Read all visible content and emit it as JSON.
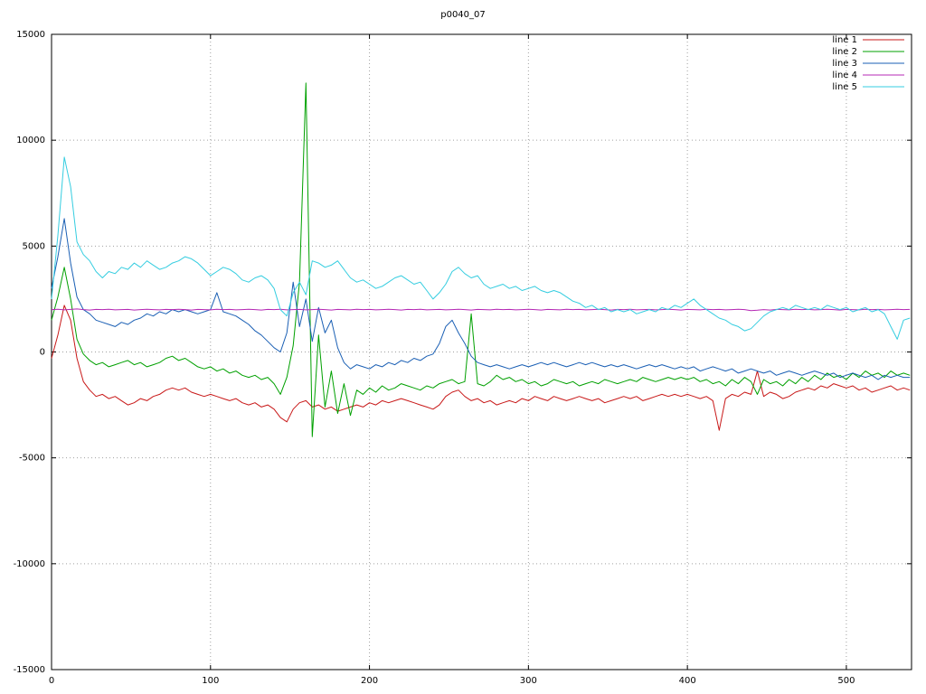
{
  "chart_data": {
    "type": "line",
    "title": "p0040_07",
    "xlabel": "",
    "ylabel": "",
    "xlim": [
      0,
      541
    ],
    "ylim": [
      -15000,
      15000
    ],
    "x_ticks": [
      0,
      100,
      200,
      300,
      400,
      500
    ],
    "y_ticks": [
      -15000,
      -10000,
      -5000,
      0,
      5000,
      10000,
      15000
    ],
    "grid": "dotted",
    "legend_position": "top-right",
    "x_start": 0,
    "x_step": 4,
    "series": [
      {
        "name": "line 1",
        "color": "#c81818",
        "values": [
          -300,
          800,
          2200,
          1500,
          -300,
          -1400,
          -1800,
          -2100,
          -2000,
          -2200,
          -2100,
          -2300,
          -2500,
          -2400,
          -2200,
          -2300,
          -2100,
          -2000,
          -1800,
          -1700,
          -1800,
          -1700,
          -1900,
          -2000,
          -2100,
          -2000,
          -2100,
          -2200,
          -2300,
          -2200,
          -2400,
          -2500,
          -2400,
          -2600,
          -2500,
          -2700,
          -3100,
          -3300,
          -2700,
          -2400,
          -2300,
          -2600,
          -2500,
          -2700,
          -2600,
          -2800,
          -2700,
          -2600,
          -2500,
          -2600,
          -2400,
          -2500,
          -2300,
          -2400,
          -2300,
          -2200,
          -2300,
          -2400,
          -2500,
          -2600,
          -2700,
          -2500,
          -2100,
          -1900,
          -1800,
          -2100,
          -2300,
          -2200,
          -2400,
          -2300,
          -2500,
          -2400,
          -2300,
          -2400,
          -2200,
          -2300,
          -2100,
          -2200,
          -2300,
          -2100,
          -2200,
          -2300,
          -2200,
          -2100,
          -2200,
          -2300,
          -2200,
          -2400,
          -2300,
          -2200,
          -2100,
          -2200,
          -2100,
          -2300,
          -2200,
          -2100,
          -2000,
          -2100,
          -2000,
          -2100,
          -2000,
          -2100,
          -2200,
          -2100,
          -2300,
          -3700,
          -2200,
          -2000,
          -2100,
          -1900,
          -2000,
          -900,
          -2100,
          -1900,
          -2000,
          -2200,
          -2100,
          -1900,
          -1800,
          -1700,
          -1800,
          -1600,
          -1700,
          -1500,
          -1600,
          -1700,
          -1600,
          -1800,
          -1700,
          -1900,
          -1800,
          -1700,
          -1600,
          -1800,
          -1700,
          -1800
        ]
      },
      {
        "name": "line 2",
        "color": "#00a000",
        "values": [
          1500,
          2600,
          4000,
          2500,
          600,
          -100,
          -400,
          -600,
          -500,
          -700,
          -600,
          -500,
          -400,
          -600,
          -500,
          -700,
          -600,
          -500,
          -300,
          -200,
          -400,
          -300,
          -500,
          -700,
          -800,
          -700,
          -900,
          -800,
          -1000,
          -900,
          -1100,
          -1200,
          -1100,
          -1300,
          -1200,
          -1500,
          -2000,
          -1200,
          300,
          3300,
          12700,
          -4000,
          800,
          -2600,
          -900,
          -2900,
          -1500,
          -3000,
          -1800,
          -2000,
          -1700,
          -1900,
          -1600,
          -1800,
          -1700,
          -1500,
          -1600,
          -1700,
          -1800,
          -1600,
          -1700,
          -1500,
          -1400,
          -1300,
          -1500,
          -1400,
          1800,
          -1500,
          -1600,
          -1400,
          -1100,
          -1300,
          -1200,
          -1400,
          -1300,
          -1500,
          -1400,
          -1600,
          -1500,
          -1300,
          -1400,
          -1500,
          -1400,
          -1600,
          -1500,
          -1400,
          -1500,
          -1300,
          -1400,
          -1500,
          -1400,
          -1300,
          -1400,
          -1200,
          -1300,
          -1400,
          -1300,
          -1200,
          -1300,
          -1200,
          -1300,
          -1200,
          -1400,
          -1300,
          -1500,
          -1400,
          -1600,
          -1300,
          -1500,
          -1200,
          -1400,
          -2000,
          -1300,
          -1500,
          -1400,
          -1600,
          -1300,
          -1500,
          -1200,
          -1400,
          -1100,
          -1300,
          -1000,
          -1200,
          -1100,
          -1300,
          -1000,
          -1200,
          -900,
          -1100,
          -1000,
          -1200,
          -900,
          -1100,
          -1000,
          -1100
        ]
      },
      {
        "name": "line 3",
        "color": "#1a5fb4",
        "values": [
          3000,
          4500,
          6300,
          4200,
          2600,
          2000,
          1800,
          1500,
          1400,
          1300,
          1200,
          1400,
          1300,
          1500,
          1600,
          1800,
          1700,
          1900,
          1800,
          2000,
          1900,
          2000,
          1900,
          1800,
          1900,
          2000,
          2800,
          1900,
          1800,
          1700,
          1500,
          1300,
          1000,
          800,
          500,
          200,
          0,
          900,
          3300,
          1200,
          2500,
          500,
          2100,
          900,
          1500,
          200,
          -500,
          -800,
          -600,
          -700,
          -800,
          -600,
          -700,
          -500,
          -600,
          -400,
          -500,
          -300,
          -400,
          -200,
          -100,
          400,
          1200,
          1500,
          900,
          400,
          -200,
          -500,
          -600,
          -700,
          -600,
          -700,
          -800,
          -700,
          -600,
          -700,
          -600,
          -500,
          -600,
          -500,
          -600,
          -700,
          -600,
          -500,
          -600,
          -500,
          -600,
          -700,
          -600,
          -700,
          -600,
          -700,
          -800,
          -700,
          -600,
          -700,
          -600,
          -700,
          -800,
          -700,
          -800,
          -700,
          -900,
          -800,
          -700,
          -800,
          -900,
          -800,
          -1000,
          -900,
          -800,
          -900,
          -1000,
          -900,
          -1100,
          -1000,
          -900,
          -1000,
          -1100,
          -1000,
          -900,
          -1000,
          -1100,
          -1000,
          -1200,
          -1100,
          -1000,
          -1100,
          -1200,
          -1100,
          -1300,
          -1100,
          -1200,
          -1100,
          -1200,
          -1200
        ]
      },
      {
        "name": "line 4",
        "color": "#b428b4",
        "values": [
          2000,
          2020,
          1990,
          2010,
          2030,
          2000,
          1980,
          2010,
          2000,
          2020,
          1990,
          2000,
          2010,
          1980,
          2000,
          2020,
          2000,
          1990,
          2010,
          2000,
          2020,
          2000,
          1980,
          2010,
          2000,
          1990,
          2020,
          2000,
          2010,
          1990,
          2000,
          2020,
          2000,
          1980,
          2010,
          2000,
          2020,
          1990,
          2000,
          2010,
          1990,
          2000,
          2020,
          2000,
          1980,
          2010,
          2000,
          1990,
          2020,
          2000,
          2010,
          1990,
          2000,
          2020,
          2000,
          1980,
          2010,
          2000,
          2020,
          1990,
          2000,
          2010,
          1990,
          2000,
          2020,
          2000,
          1980,
          2010,
          2000,
          1990,
          2020,
          2000,
          2010,
          1990,
          2000,
          2020,
          2000,
          1980,
          2010,
          2000,
          1990,
          2020,
          2000,
          2010,
          1990,
          2000,
          2020,
          2000,
          1980,
          2010,
          2000,
          2020,
          1990,
          2000,
          2010,
          1990,
          2000,
          2020,
          2000,
          1980,
          2010,
          2000,
          1990,
          2020,
          2000,
          2010,
          1990,
          2000,
          2020,
          2000,
          1950,
          1970,
          2000,
          1980,
          2010,
          2000,
          1990,
          2020,
          2000,
          2010,
          1990,
          2000,
          2020,
          2000,
          1980,
          2010,
          2000,
          1990,
          2020,
          2000,
          2010,
          1990,
          2000,
          2020,
          2000,
          2010
        ]
      },
      {
        "name": "line 5",
        "color": "#35cde0",
        "values": [
          2500,
          5500,
          9200,
          7800,
          5200,
          4600,
          4300,
          3800,
          3500,
          3800,
          3700,
          4000,
          3900,
          4200,
          4000,
          4300,
          4100,
          3900,
          4000,
          4200,
          4300,
          4500,
          4400,
          4200,
          3900,
          3600,
          3800,
          4000,
          3900,
          3700,
          3400,
          3300,
          3500,
          3600,
          3400,
          3000,
          2000,
          1700,
          2800,
          3300,
          2700,
          4300,
          4200,
          4000,
          4100,
          4300,
          3900,
          3500,
          3300,
          3400,
          3200,
          3000,
          3100,
          3300,
          3500,
          3600,
          3400,
          3200,
          3300,
          2900,
          2500,
          2800,
          3200,
          3800,
          4000,
          3700,
          3500,
          3600,
          3200,
          3000,
          3100,
          3200,
          3000,
          3100,
          2900,
          3000,
          3100,
          2900,
          2800,
          2900,
          2800,
          2600,
          2400,
          2300,
          2100,
          2200,
          2000,
          2100,
          1900,
          2000,
          1900,
          2000,
          1800,
          1900,
          2000,
          1900,
          2100,
          2000,
          2200,
          2100,
          2300,
          2500,
          2200,
          2000,
          1800,
          1600,
          1500,
          1300,
          1200,
          1000,
          1100,
          1400,
          1700,
          1900,
          2000,
          2100,
          2000,
          2200,
          2100,
          2000,
          2100,
          2000,
          2200,
          2100,
          2000,
          2100,
          1900,
          2000,
          2100,
          1900,
          2000,
          1800,
          1200,
          600,
          1500,
          1600
        ]
      }
    ]
  }
}
